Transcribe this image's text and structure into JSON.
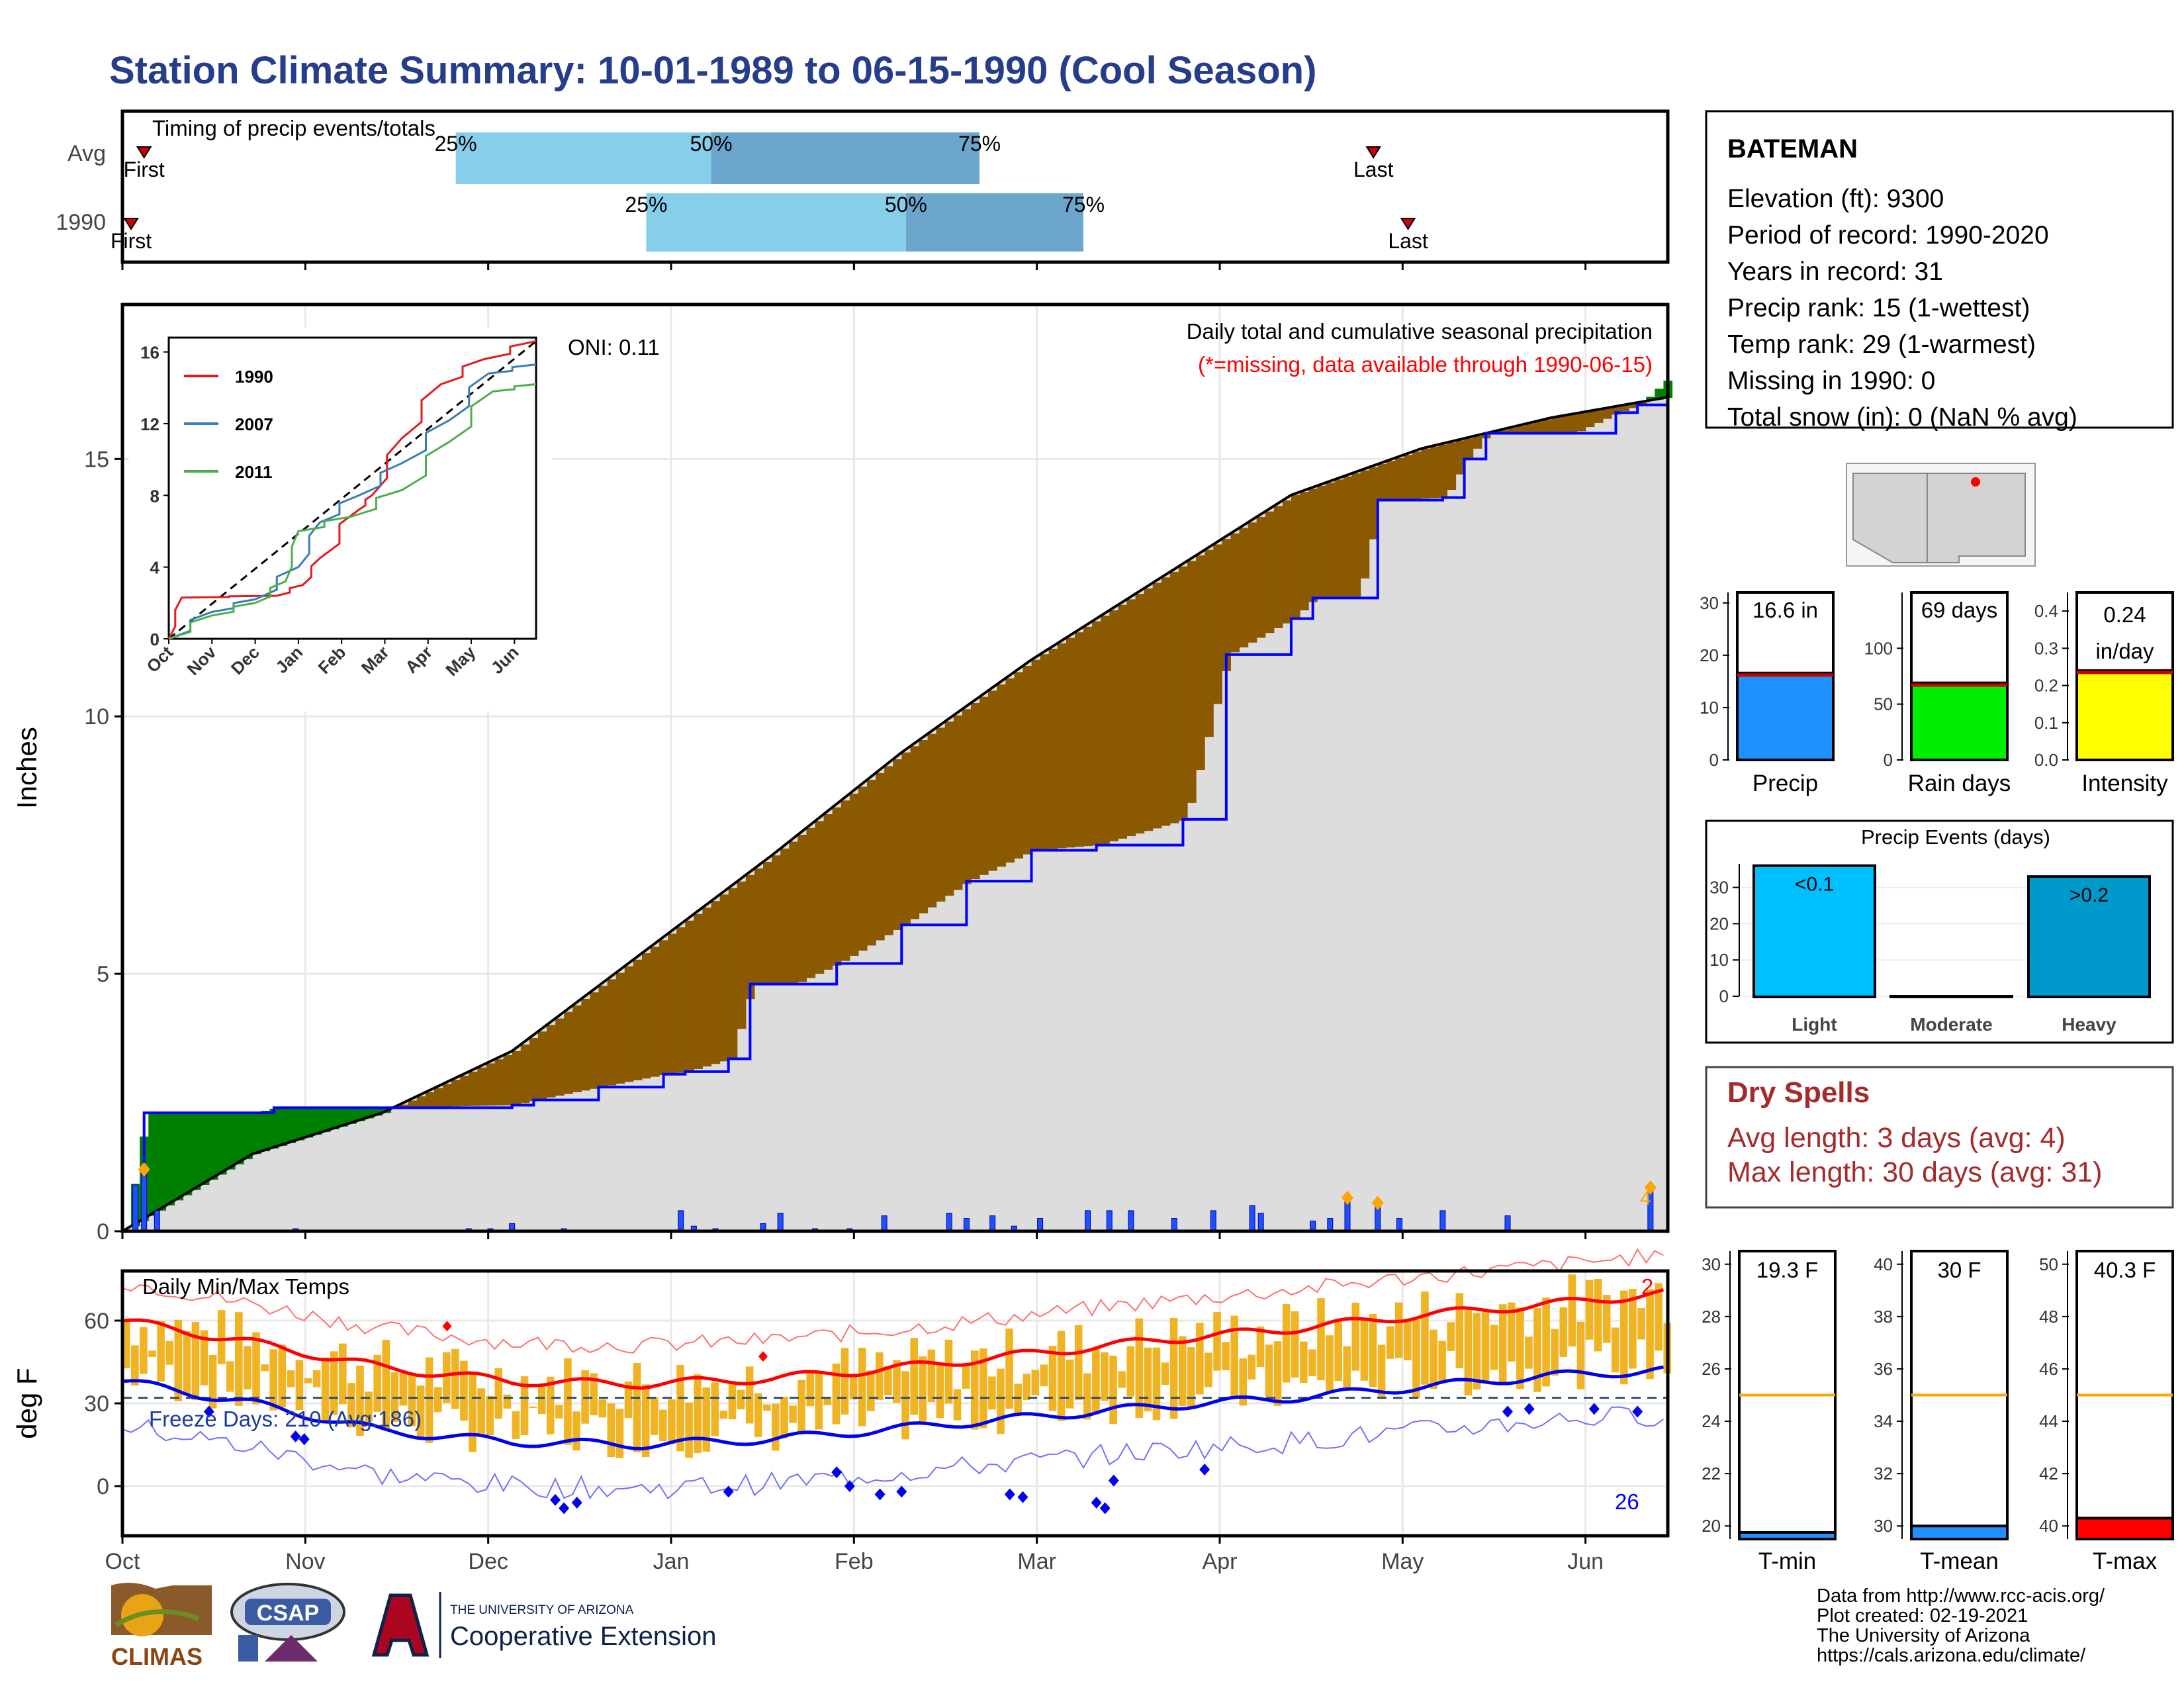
{
  "title": "Station Climate Summary: 10-01-1989 to 06-15-1990 (Cool Season)",
  "timing": {
    "label": "Timing of precip events/totals",
    "rows": [
      {
        "name": "Avg",
        "first_label": "First",
        "last_label": "Last",
        "first_day": 5,
        "last_day": 289,
        "p25": 77,
        "p50": 136,
        "p75": 198
      },
      {
        "name": "1990",
        "first_label": "First",
        "last_label": "Last",
        "first_day": 2,
        "last_day": 297,
        "p25": 121,
        "p50": 181,
        "p75": 222
      }
    ],
    "pct_labels": [
      "25%",
      "50%",
      "75%"
    ]
  },
  "station": {
    "name": "BATEMAN",
    "lines": [
      "Elevation (ft): 9300",
      "Period of record: 1990-2020",
      "Years in record: 31",
      "Precip rank: 15 (1-wettest)",
      "Temp rank: 29 (1-warmest)",
      "Missing in 1990: 0",
      "Total snow (in): 0 (NaN % avg)"
    ]
  },
  "precip_panel": {
    "ylabel": "Inches",
    "header": "Daily total and cumulative seasonal precipitation",
    "missing_note": "(*=missing, data available through 1990-06-15)",
    "oni": "ONI: 0.11",
    "y_ticks": [
      "0",
      "5",
      "10",
      "15"
    ],
    "count_label": "4"
  },
  "inset": {
    "legend": [
      "1990",
      "2007",
      "2011"
    ],
    "y_ticks": [
      "0",
      "4",
      "8",
      "12",
      "16"
    ],
    "x_ticks": [
      "Oct",
      "Nov",
      "Dec",
      "Jan",
      "Feb",
      "Mar",
      "Apr",
      "May",
      "Jun"
    ]
  },
  "temp_panel": {
    "ylabel": "deg F",
    "header": "Daily Min/Max Temps",
    "freeze": "Freeze Days: 210 (Avg:186)",
    "y_ticks": [
      "0",
      "30",
      "60"
    ],
    "count_high": "2",
    "count_low": "26"
  },
  "x_months": [
    "Oct",
    "Nov",
    "Dec",
    "Jan",
    "Feb",
    "Mar",
    "Apr",
    "May",
    "Jun"
  ],
  "summary_bars": [
    {
      "name": "Precip",
      "label": "16.6 in",
      "value": 16.6,
      "avg": 16.2,
      "max": 32,
      "ticks": [
        "0",
        "10",
        "20",
        "30"
      ],
      "color": "#1e90ff"
    },
    {
      "name": "Rain days",
      "label": "69 days",
      "value": 69,
      "avg": 67,
      "max": 150,
      "ticks": [
        "0",
        "50",
        "100"
      ],
      "color": "#00ee00"
    },
    {
      "name": "Intensity",
      "label": "0.24 in/day",
      "label1": "0.24",
      "label2": "in/day",
      "value": 0.24,
      "avg": 0.235,
      "max": 0.45,
      "ticks": [
        "0.0",
        "0.1",
        "0.2",
        "0.3",
        "0.4"
      ],
      "color": "#ffff00"
    }
  ],
  "events": {
    "title": "Precip Events (days)",
    "bars": [
      {
        "name": "Light",
        "label": "<0.1",
        "value": 36,
        "color": "#00bfff"
      },
      {
        "name": "Moderate",
        "label": "",
        "value": 0,
        "color": "#1a8ccc"
      },
      {
        "name": "Heavy",
        "label": ">0.2",
        "value": 33,
        "color": "#0099cc"
      }
    ],
    "ticks": [
      "0",
      "10",
      "20",
      "30"
    ]
  },
  "dry_spells": {
    "title": "Dry Spells",
    "avg": "Avg length: 3 days (avg: 4)",
    "max": "Max length: 30 days (avg: 31)"
  },
  "temp_bars": [
    {
      "name": "T-min",
      "label": "19.3 F",
      "value": 19.3,
      "avg": 25,
      "min": 19.5,
      "max": 30.5,
      "ticks": [
        "20",
        "22",
        "24",
        "26",
        "28",
        "30"
      ],
      "color": "#1e90ff"
    },
    {
      "name": "T-mean",
      "label": "30 F",
      "value": 30,
      "avg": 35,
      "min": 29.5,
      "max": 40.5,
      "ticks": [
        "30",
        "32",
        "34",
        "36",
        "38",
        "40"
      ],
      "color": "#1e90ff"
    },
    {
      "name": "T-max",
      "label": "40.3 F",
      "value": 40.3,
      "avg": 45,
      "min": 39.5,
      "max": 50.5,
      "ticks": [
        "40",
        "42",
        "44",
        "46",
        "48",
        "50"
      ],
      "color": "#ff0000"
    }
  ],
  "footer": {
    "lines": [
      "Data from http://www.rcc-acis.org/",
      "Plot created: 02-19-2021",
      "The University of Arizona",
      "https://cals.arizona.edu/climate/"
    ],
    "climas": "CLIMAS",
    "csap": "CSAP",
    "ua_small": "THE UNIVERSITY OF ARIZONA",
    "ua_big": "Cooperative Extension"
  },
  "chart_data": {
    "type": "area",
    "x_range": [
      "1989-10-01",
      "1990-06-15"
    ],
    "cumulative_1990": [
      [
        0,
        0
      ],
      [
        5,
        2.3
      ],
      [
        30,
        2.3
      ],
      [
        35,
        2.4
      ],
      [
        60,
        2.4
      ],
      [
        90,
        2.45
      ],
      [
        95,
        2.55
      ],
      [
        110,
        2.8
      ],
      [
        125,
        3.05
      ],
      [
        130,
        3.1
      ],
      [
        140,
        3.35
      ],
      [
        145,
        4.8
      ],
      [
        155,
        4.8
      ],
      [
        165,
        5.2
      ],
      [
        180,
        5.95
      ],
      [
        195,
        6.8
      ],
      [
        210,
        7.4
      ],
      [
        225,
        7.5
      ],
      [
        245,
        8.0
      ],
      [
        255,
        11.2
      ],
      [
        270,
        11.9
      ],
      [
        275,
        12.3
      ],
      [
        285,
        12.3
      ],
      [
        290,
        14.2
      ],
      [
        305,
        14.25
      ],
      [
        310,
        15.0
      ],
      [
        315,
        15.5
      ],
      [
        335,
        15.5
      ],
      [
        345,
        15.9
      ],
      [
        350,
        16.05
      ],
      [
        357,
        16.6
      ]
    ],
    "cumulative_avg": [
      [
        0,
        0
      ],
      [
        30,
        1.5
      ],
      [
        60,
        2.3
      ],
      [
        90,
        3.5
      ],
      [
        120,
        5.4
      ],
      [
        150,
        7.3
      ],
      [
        180,
        9.3
      ],
      [
        210,
        11.1
      ],
      [
        240,
        12.7
      ],
      [
        270,
        14.3
      ],
      [
        300,
        15.2
      ],
      [
        330,
        15.8
      ],
      [
        357,
        16.2
      ]
    ],
    "daily_precip": [
      [
        3,
        0.9
      ],
      [
        5,
        1.2
      ],
      [
        8,
        0.4
      ],
      [
        40,
        0.05
      ],
      [
        80,
        0.05
      ],
      [
        85,
        0.05
      ],
      [
        90,
        0.15
      ],
      [
        102,
        0.05
      ],
      [
        129,
        0.4
      ],
      [
        132,
        0.1
      ],
      [
        137,
        0.05
      ],
      [
        148,
        0.15
      ],
      [
        152,
        0.35
      ],
      [
        160,
        0.05
      ],
      [
        168,
        0.05
      ],
      [
        176,
        0.3
      ],
      [
        191,
        0.35
      ],
      [
        195,
        0.25
      ],
      [
        201,
        0.3
      ],
      [
        206,
        0.1
      ],
      [
        212,
        0.25
      ],
      [
        223,
        0.4
      ],
      [
        228,
        0.4
      ],
      [
        233,
        0.4
      ],
      [
        243,
        0.25
      ],
      [
        252,
        0.4
      ],
      [
        261,
        0.5
      ],
      [
        263,
        0.35
      ],
      [
        275,
        0.2
      ],
      [
        279,
        0.25
      ],
      [
        283,
        0.65
      ],
      [
        290,
        0.6
      ],
      [
        295,
        0.25
      ],
      [
        305,
        0.4
      ],
      [
        320,
        0.3
      ],
      [
        353,
        0.85
      ]
    ],
    "inset_series": [
      {
        "name": "1990",
        "points": [
          [
            0,
            0
          ],
          [
            0.3,
            2.3
          ],
          [
            2.5,
            2.4
          ],
          [
            3.1,
            3.0
          ],
          [
            3.5,
            4.5
          ],
          [
            4.4,
            7.2
          ],
          [
            4.7,
            8.0
          ],
          [
            5.4,
            11.2
          ],
          [
            6.3,
            14.2
          ],
          [
            7.3,
            15.6
          ],
          [
            8.5,
            16.6
          ]
        ]
      },
      {
        "name": "2007",
        "points": [
          [
            0,
            0
          ],
          [
            1,
            1.5
          ],
          [
            2,
            2.2
          ],
          [
            3,
            4.0
          ],
          [
            3.5,
            6.5
          ],
          [
            4.4,
            8.0
          ],
          [
            5.4,
            9.8
          ],
          [
            6.5,
            12.2
          ],
          [
            7.4,
            14.8
          ],
          [
            8.5,
            15.3
          ]
        ]
      },
      {
        "name": "2011",
        "points": [
          [
            0,
            0
          ],
          [
            1,
            1.3
          ],
          [
            2,
            2.0
          ],
          [
            2.7,
            3.2
          ],
          [
            3.0,
            6.0
          ],
          [
            4.2,
            6.8
          ],
          [
            5.4,
            8.3
          ],
          [
            6.5,
            11.0
          ],
          [
            7.5,
            13.8
          ],
          [
            8.5,
            14.2
          ]
        ]
      }
    ],
    "temp_tmax_daily": [
      [
        0,
        50
      ],
      [
        30,
        42
      ],
      [
        60,
        35
      ],
      [
        90,
        34
      ],
      [
        120,
        38
      ],
      [
        150,
        40
      ],
      [
        180,
        44
      ],
      [
        210,
        47
      ],
      [
        240,
        52
      ],
      [
        270,
        56
      ],
      [
        300,
        60
      ],
      [
        330,
        66
      ],
      [
        357,
        70
      ]
    ],
    "temp_tmax_normal": [
      [
        0,
        60
      ],
      [
        30,
        52
      ],
      [
        60,
        43
      ],
      [
        90,
        38
      ],
      [
        120,
        37
      ],
      [
        150,
        39
      ],
      [
        180,
        43
      ],
      [
        210,
        48
      ],
      [
        240,
        53
      ],
      [
        270,
        57
      ],
      [
        300,
        62
      ],
      [
        330,
        66
      ],
      [
        357,
        70
      ]
    ],
    "temp_tmin_normal": [
      [
        0,
        38
      ],
      [
        30,
        30
      ],
      [
        60,
        20
      ],
      [
        90,
        16
      ],
      [
        120,
        15
      ],
      [
        150,
        17
      ],
      [
        180,
        21
      ],
      [
        210,
        25
      ],
      [
        240,
        29
      ],
      [
        270,
        32
      ],
      [
        300,
        36
      ],
      [
        330,
        40
      ],
      [
        357,
        42
      ]
    ],
    "freeze_line": 32,
    "temp_ylim": [
      -18,
      78
    ],
    "precip_ylim": [
      0,
      18
    ]
  }
}
